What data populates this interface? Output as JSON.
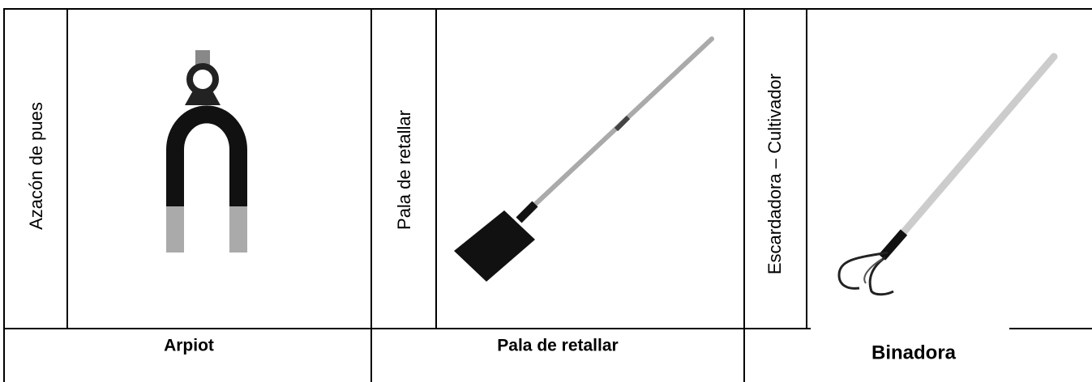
{
  "table": {
    "columns": [
      {
        "side_label": "Azacón de pues",
        "caption": "Arpiot"
      },
      {
        "side_label": "Pala de retallar",
        "caption": "Pala de retallar"
      },
      {
        "side_label": "Escardadora – Cultivador",
        "caption": "Binadora"
      }
    ]
  }
}
